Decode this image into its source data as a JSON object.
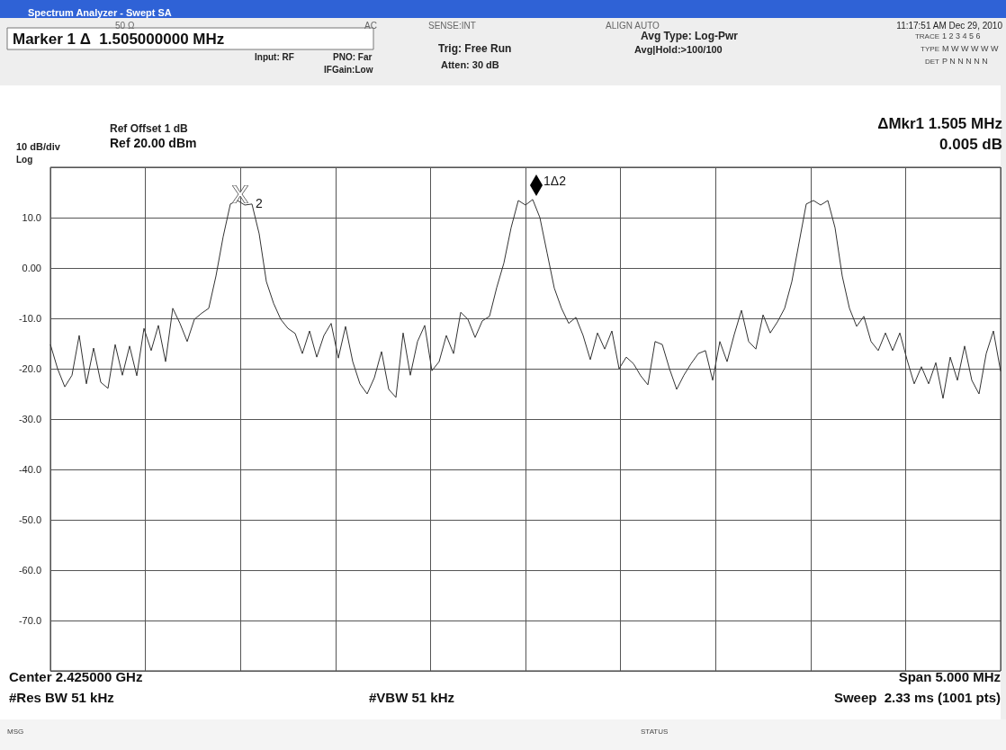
{
  "chart_data": {
    "type": "line",
    "title": "Spectrum Analyzer - Swept SA",
    "categories": [
      null,
      null,
      null,
      null,
      null,
      null,
      null,
      null,
      null,
      null,
      null,
      null,
      null,
      null,
      null,
      null,
      null,
      null,
      null,
      null,
      null,
      null,
      null,
      null,
      null,
      null,
      null,
      null,
      null,
      null,
      null,
      null,
      null,
      null,
      null,
      null,
      null,
      null,
      null,
      null,
      null,
      null,
      null,
      null,
      null,
      null,
      null,
      null,
      null,
      null,
      null,
      null,
      null,
      null,
      null,
      null,
      null,
      null,
      null,
      null,
      null,
      null,
      null,
      null,
      null,
      null,
      null,
      null,
      null,
      null,
      null,
      null,
      null,
      null,
      null,
      null,
      null,
      null,
      null,
      null,
      null,
      null,
      null,
      null,
      null,
      null,
      null,
      null,
      null,
      null,
      null,
      null,
      null,
      null,
      null,
      null,
      null,
      null,
      null,
      null,
      null,
      null,
      null,
      null,
      null,
      null,
      null,
      null,
      null,
      null,
      null,
      null,
      null,
      null,
      null,
      null,
      null,
      null,
      null,
      null,
      null,
      null,
      null,
      null,
      null,
      null,
      null,
      null,
      null,
      null,
      null,
      null,
      null
    ],
    "values": [
      -15.2,
      -20,
      -23.6,
      -21.3,
      -13.4,
      -23,
      -15.9,
      -22.7,
      -23.9,
      -15.2,
      -21.3,
      -15.5,
      -21.4,
      -12,
      -16.4,
      -11.4,
      -18.6,
      -8,
      -11,
      -14.6,
      -10.2,
      -9,
      -8,
      -1.6,
      6.2,
      12.7,
      13.4,
      12.5,
      12.7,
      6.8,
      -2.7,
      -7,
      -10.2,
      -12,
      -13,
      -17,
      -12.5,
      -17.7,
      -13.4,
      -11,
      -17.9,
      -11.6,
      -18.6,
      -23,
      -25,
      -21.8,
      -16.6,
      -24.1,
      -25.7,
      -12.9,
      -21.3,
      -14.6,
      -11.4,
      -20.4,
      -18.6,
      -13.4,
      -17,
      -8.8,
      -10.2,
      -13.8,
      -10.5,
      -9.6,
      -3.9,
      1,
      8,
      13.4,
      12.5,
      13.6,
      10,
      3,
      -4,
      -8,
      -11,
      -9.8,
      -13.4,
      -18.2,
      -12.9,
      -16.1,
      -12.5,
      -20,
      -17.7,
      -19,
      -21.4,
      -23.2,
      -14.6,
      -15.2,
      -20,
      -24.1,
      -21.3,
      -19,
      -17,
      -16.4,
      -22.3,
      -14.6,
      -18.6,
      -13.2,
      -8.4,
      -14.6,
      -16.1,
      -9.3,
      -12.9,
      -10.7,
      -8,
      -2.7,
      5,
      12.7,
      13.4,
      12.5,
      13.4,
      8,
      -1.6,
      -8,
      -11.6,
      -9.6,
      -14.6,
      -16.4,
      -12.9,
      -16.4,
      -12.9,
      -18.2,
      -23,
      -19.6,
      -23,
      -18.8,
      -25.9,
      -17.7,
      -22.3,
      -15.5,
      -22.3,
      -25,
      -17,
      -12.5,
      -20.5
    ],
    "color": "#333333",
    "line_style": "solid",
    "grid": true,
    "tick_labels": "y",
    "ylim": [
      -80,
      20
    ],
    "yticks": [
      {
        "value": -80,
        "label": null
      },
      {
        "value": -70,
        "label": "-70.0"
      },
      {
        "value": -60,
        "label": "-60.0"
      },
      {
        "value": -50,
        "label": "-50.0"
      },
      {
        "value": -40,
        "label": "-40.0"
      },
      {
        "value": -30,
        "label": "-30.0"
      },
      {
        "value": -20,
        "label": "-20.0"
      },
      {
        "value": -10,
        "label": "-10.0"
      },
      {
        "value": 0,
        "label": "0.00"
      },
      {
        "value": 10,
        "label": "10.0"
      },
      {
        "value": 20,
        "label": null
      }
    ],
    "annotations": [
      "2",
      "1Δ2",
      "50 Ω",
      "AC",
      "SENSE:INT",
      "ALIGN AUTO",
      "11:17:51 AM Dec 29, 2010",
      "Marker 1 Δ  1.505000000 MHz",
      "Input: RF",
      "PNO: Far",
      "IFGain:Low",
      "Trig: Free Run",
      "Atten: 30 dB",
      "Avg Type: Log-Pwr",
      "Avg|Hold:>100/100",
      "TRACE",
      "1 2 3 4 5 6",
      "TYPE",
      "M W W W W W",
      "DET",
      "P N N N N N",
      "Ref Offset 1 dB",
      "Ref 20.00 dBm",
      "10 dB/div",
      "Log",
      "ΔMkr1 1.505 MHz",
      "0.005 dB",
      "Center 2.425000 GHz",
      "#Res BW 51 kHz",
      "#VBW 51 kHz",
      "Span 5.000 MHz",
      "Sweep  2.33 ms (1001 pts)",
      "MSG",
      "STATUS"
    ]
  }
}
